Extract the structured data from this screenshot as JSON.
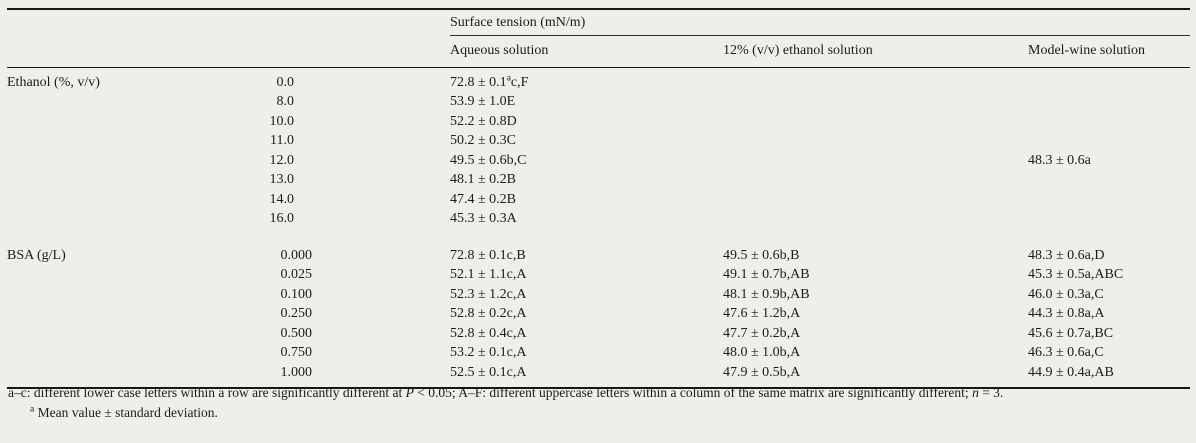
{
  "table": {
    "header": {
      "span_title": "Surface tension (mN/m)",
      "columns": {
        "aqueous": "Aqueous solution",
        "ethanol12": "12% (v/v) ethanol solution",
        "modelwine": "Model-wine solution"
      }
    },
    "groups": [
      {
        "label": "Ethanol (%, v/v)",
        "rows": [
          {
            "level": "0.0",
            "aqueous": "72.8 ± 0.1^{a}c,F"
          },
          {
            "level": "8.0",
            "aqueous": "53.9 ± 1.0E"
          },
          {
            "level": "10.0",
            "aqueous": "52.2 ± 0.8D"
          },
          {
            "level": "11.0",
            "aqueous": "50.2 ± 0.3C"
          },
          {
            "level": "12.0",
            "aqueous": "49.5 ± 0.6b,C",
            "modelwine": "48.3 ± 0.6a"
          },
          {
            "level": "13.0",
            "aqueous": "48.1 ± 0.2B"
          },
          {
            "level": "14.0",
            "aqueous": "47.4 ± 0.2B"
          },
          {
            "level": "16.0",
            "aqueous": "45.3 ± 0.3A"
          }
        ]
      },
      {
        "label": "BSA (g/L)",
        "rows": [
          {
            "level": "0.000",
            "aqueous": "72.8 ± 0.1c,B",
            "ethanol12": "49.5 ± 0.6b,B",
            "modelwine": "48.3 ± 0.6a,D"
          },
          {
            "level": "0.025",
            "aqueous": "52.1 ± 1.1c,A",
            "ethanol12": "49.1 ± 0.7b,AB",
            "modelwine": "45.3 ± 0.5a,ABC"
          },
          {
            "level": "0.100",
            "aqueous": "52.3 ± 1.2c,A",
            "ethanol12": "48.1 ± 0.9b,AB",
            "modelwine": "46.0 ± 0.3a,C"
          },
          {
            "level": "0.250",
            "aqueous": "52.8 ± 0.2c,A",
            "ethanol12": "47.6 ± 1.2b,A",
            "modelwine": "44.3 ± 0.8a,A"
          },
          {
            "level": "0.500",
            "aqueous": "52.8 ± 0.4c,A",
            "ethanol12": "47.7 ± 0.2b,A",
            "modelwine": "45.6 ± 0.7a,BC"
          },
          {
            "level": "0.750",
            "aqueous": "53.2 ± 0.1c,A",
            "ethanol12": "48.0 ± 1.0b,A",
            "modelwine": "46.3 ± 0.6a,C"
          },
          {
            "level": "1.000",
            "aqueous": "52.5 ± 0.1c,A",
            "ethanol12": "47.9 ± 0.5b,A",
            "modelwine": "44.9 ± 0.4a,AB"
          }
        ]
      }
    ]
  },
  "footnotes": {
    "note1": [
      {
        "t": "a–c: different lower case letters within a row are significantly different at "
      },
      {
        "t": "P",
        "i": true
      },
      {
        "t": " < 0.05; A–F: different uppercase letters within a column of the same matrix are significantly different; "
      },
      {
        "t": "n",
        "i": true
      },
      {
        "t": " = 3."
      }
    ],
    "note2": [
      {
        "t": "a",
        "sup": true
      },
      {
        "t": " Mean value ± standard deviation."
      }
    ]
  }
}
